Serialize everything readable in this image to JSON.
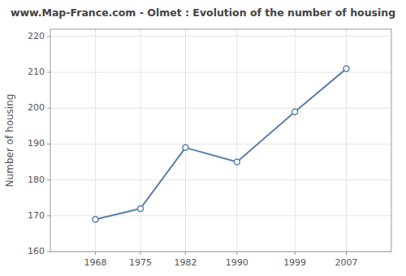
{
  "chart_data": {
    "type": "line",
    "title": "www.Map-France.com - Olmet : Evolution of the number of housing",
    "ylabel": "Number of housing",
    "x": [
      1968,
      1975,
      1982,
      1990,
      1999,
      2007
    ],
    "values": [
      169,
      172,
      189,
      185,
      199,
      211
    ],
    "xlim": [
      1961,
      2014
    ],
    "ylim": [
      160,
      222
    ],
    "xticks": [
      1968,
      1975,
      1982,
      1990,
      1999,
      2007
    ],
    "yticks": [
      160,
      170,
      180,
      190,
      200,
      210,
      220
    ],
    "color": "#5b7fad",
    "marker": "circle",
    "grid": true
  }
}
